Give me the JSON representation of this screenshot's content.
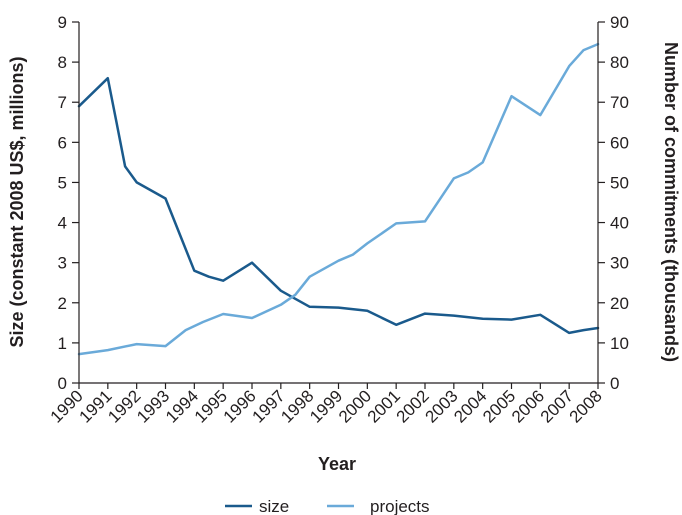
{
  "chart_data": {
    "type": "line",
    "xlabel": "Year",
    "ylabel_left": "Size (constant 2008 US$, millions)",
    "ylabel_right": "Number of commitments (thousands)",
    "x_ticks": [
      "1990",
      "1991",
      "1992",
      "1993",
      "1994",
      "1995",
      "1996",
      "1997",
      "1998",
      "1999",
      "2000",
      "2001",
      "2002",
      "2003",
      "2004",
      "2005",
      "2006",
      "2007",
      "2008"
    ],
    "ylim_left": [
      0,
      9
    ],
    "yticks_left": [
      0,
      1,
      2,
      3,
      4,
      5,
      6,
      7,
      8,
      9
    ],
    "ylim_right": [
      0,
      90
    ],
    "yticks_right": [
      0,
      10,
      20,
      30,
      40,
      50,
      60,
      70,
      80,
      90
    ],
    "xlim": [
      1990,
      2008
    ],
    "grid": false,
    "legend_position": "bottom-center",
    "series": [
      {
        "name": "size",
        "axis": "left",
        "color": "#1a5a8c",
        "points": [
          [
            1990,
            6.9
          ],
          [
            1991,
            7.6
          ],
          [
            1991.3,
            6.5
          ],
          [
            1991.6,
            5.4
          ],
          [
            1992,
            5.0
          ],
          [
            1993,
            4.6
          ],
          [
            1993.5,
            3.7
          ],
          [
            1994,
            2.8
          ],
          [
            1994.5,
            2.65
          ],
          [
            1995,
            2.55
          ],
          [
            1996,
            3.0
          ],
          [
            1997,
            2.3
          ],
          [
            1997.5,
            2.1
          ],
          [
            1998,
            1.9
          ],
          [
            1999,
            1.88
          ],
          [
            2000,
            1.8
          ],
          [
            2001,
            1.45
          ],
          [
            2002,
            1.73
          ],
          [
            2003,
            1.68
          ],
          [
            2004,
            1.6
          ],
          [
            2005,
            1.58
          ],
          [
            2006,
            1.7
          ],
          [
            2007,
            1.25
          ],
          [
            2007.5,
            1.32
          ],
          [
            2008,
            1.37
          ]
        ]
      },
      {
        "name": "projects",
        "axis": "right",
        "color": "#6aaad9",
        "points": [
          [
            1990,
            7.2
          ],
          [
            1991,
            8.2
          ],
          [
            1992,
            9.7
          ],
          [
            1993,
            9.2
          ],
          [
            1993.7,
            13.2
          ],
          [
            1994.3,
            15.2
          ],
          [
            1995,
            17.2
          ],
          [
            1996,
            16.2
          ],
          [
            1997,
            19.5
          ],
          [
            1997.5,
            22.0
          ],
          [
            1998,
            26.5
          ],
          [
            1999,
            30.5
          ],
          [
            1999.5,
            32.0
          ],
          [
            2000,
            34.8
          ],
          [
            2001,
            39.8
          ],
          [
            2002,
            40.3
          ],
          [
            2003,
            51.0
          ],
          [
            2003.5,
            52.5
          ],
          [
            2004,
            55.0
          ],
          [
            2005,
            71.5
          ],
          [
            2006,
            66.8
          ],
          [
            2007,
            79.0
          ],
          [
            2007.5,
            83.0
          ],
          [
            2008,
            84.5
          ]
        ]
      }
    ]
  }
}
